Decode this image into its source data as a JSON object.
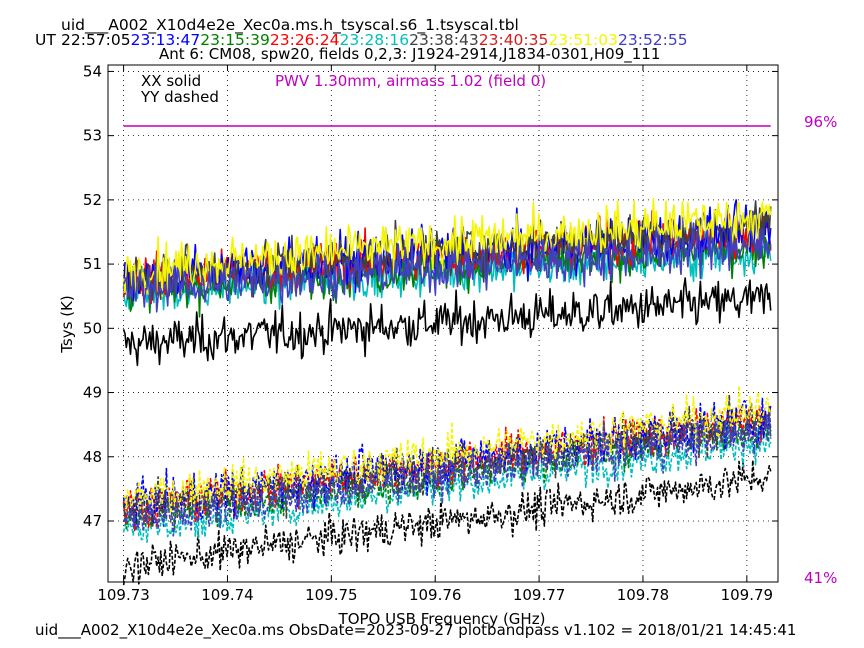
{
  "chart_data": {
    "type": "line",
    "title": "uid___A002_X10d4e2e_Xec0a.ms.h_tsyscal.s6_1.tsyscal.tbl",
    "subtitle": "Ant 6: CM08,  spw20,  fields 0,2,3: J1924-2914,J1834-0301,H09_111",
    "ut_label": "UT",
    "timestamps": [
      {
        "text": "22:57:05",
        "color": "#000000"
      },
      {
        "text": "23:13:47",
        "color": "#0000ff"
      },
      {
        "text": "23:15:39",
        "color": "#008000"
      },
      {
        "text": "23:26:24",
        "color": "#ff0000"
      },
      {
        "text": "23:28:16",
        "color": "#00bfbf"
      },
      {
        "text": "23:38:43",
        "color": "#404040"
      },
      {
        "text": "23:40:35",
        "color": "#d02020"
      },
      {
        "text": "23:51:03",
        "color": "#f5f500"
      },
      {
        "text": "23:52:55",
        "color": "#4040c0"
      }
    ],
    "xlabel": "TOPO USB Frequency (GHz)",
    "ylabel": "Tsys (K)",
    "xlim": [
      109.7285,
      109.793
    ],
    "ylim": [
      46.05,
      54.1
    ],
    "xticks": [
      "109.73",
      "109.74",
      "109.75",
      "109.76",
      "109.77",
      "109.78",
      "109.79"
    ],
    "yticks": [
      "47",
      "48",
      "49",
      "50",
      "51",
      "52",
      "53",
      "54"
    ],
    "x_start": 109.73,
    "x_end": 109.7923,
    "legend": [
      "XX solid",
      "YY dashed"
    ],
    "pwv_label": "PWV 1.30mm, airmass 1.02 (field 0)",
    "pwv_color": "#c000c0",
    "transmission_line_y": 53.15,
    "right_labels": [
      "96%",
      "41%"
    ],
    "grid": true,
    "series": [
      {
        "pol": "XX",
        "color": "#000000",
        "y_start": 49.75,
        "y_end": 50.45,
        "noise": 0.55
      },
      {
        "pol": "XX",
        "color": "#00bfbf",
        "y_start": 50.55,
        "y_end": 51.2,
        "noise": 0.5
      },
      {
        "pol": "XX",
        "color": "#008000",
        "y_start": 50.6,
        "y_end": 51.3,
        "noise": 0.5
      },
      {
        "pol": "XX",
        "color": "#ff0000",
        "y_start": 50.75,
        "y_end": 51.5,
        "noise": 0.55
      },
      {
        "pol": "XX",
        "color": "#0000ff",
        "y_start": 50.8,
        "y_end": 51.55,
        "noise": 0.6
      },
      {
        "pol": "XX",
        "color": "#404040",
        "y_start": 50.8,
        "y_end": 51.6,
        "noise": 0.6
      },
      {
        "pol": "XX",
        "color": "#f5f500",
        "y_start": 50.9,
        "y_end": 51.75,
        "noise": 0.6
      },
      {
        "pol": "XX",
        "color": "#4040c0",
        "y_start": 50.6,
        "y_end": 51.3,
        "noise": 0.55
      },
      {
        "pol": "YY",
        "color": "#000000",
        "y_start": 46.3,
        "y_end": 47.7,
        "noise": 0.45
      },
      {
        "pol": "YY",
        "color": "#00bfbf",
        "y_start": 46.85,
        "y_end": 48.25,
        "noise": 0.45
      },
      {
        "pol": "YY",
        "color": "#008000",
        "y_start": 47.0,
        "y_end": 48.45,
        "noise": 0.45
      },
      {
        "pol": "YY",
        "color": "#ff0000",
        "y_start": 47.2,
        "y_end": 48.6,
        "noise": 0.5
      },
      {
        "pol": "YY",
        "color": "#0000ff",
        "y_start": 47.25,
        "y_end": 48.6,
        "noise": 0.55
      },
      {
        "pol": "YY",
        "color": "#404040",
        "y_start": 47.2,
        "y_end": 48.55,
        "noise": 0.5
      },
      {
        "pol": "YY",
        "color": "#f5f500",
        "y_start": 47.35,
        "y_end": 48.75,
        "noise": 0.5
      },
      {
        "pol": "YY",
        "color": "#4040c0",
        "y_start": 47.0,
        "y_end": 48.4,
        "noise": 0.5
      }
    ]
  },
  "footer": {
    "text": "uid___A002_X10d4e2e_Xec0a.ms  ObsDate=2023-09-27   plotbandpass v1.102 = 2018/01/21 14:45:41"
  }
}
